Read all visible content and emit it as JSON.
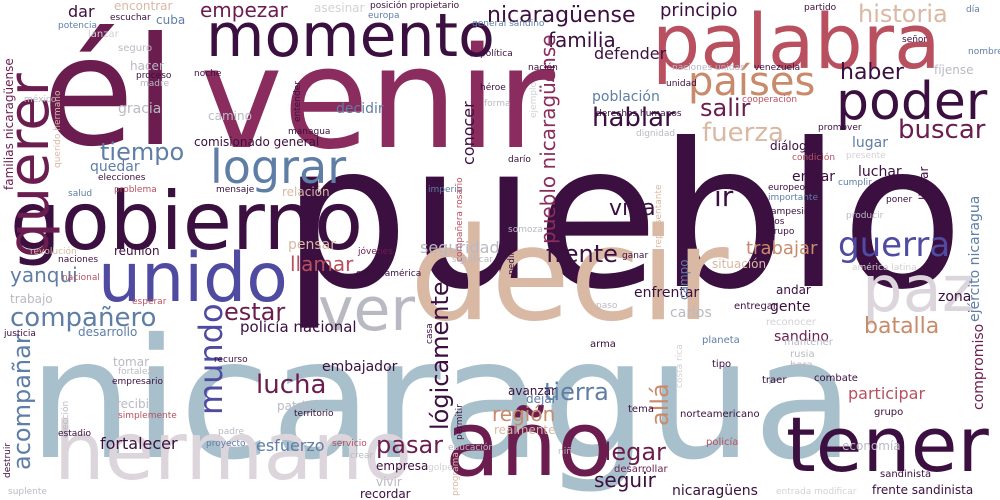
{
  "palette": {
    "dark_purple": "#3b0f3f",
    "wine": "#6b1d4f",
    "plum": "#8a2d5e",
    "rose": "#b8505f",
    "peach": "#c88a6a",
    "sand": "#d9b8a4",
    "mist": "#dcd6dc",
    "pale": "#b9b9c3",
    "steel": "#a7c0cb",
    "slate": "#5f7ea6",
    "indigo": "#4e4ba0",
    "faint": "#d5d0d6"
  },
  "words": [
    {
      "text": "pueblo",
      "color": "dark_purple",
      "vertical": false
    },
    {
      "text": "nicaragua",
      "color": "steel",
      "vertical": false
    },
    {
      "text": "decir",
      "color": "sand",
      "vertical": false
    },
    {
      "text": "él",
      "color": "wine",
      "vertical": false
    },
    {
      "text": "venir",
      "color": "plum",
      "vertical": false
    },
    {
      "text": "palabra",
      "color": "rose",
      "vertical": false
    },
    {
      "text": "hermano",
      "color": "mist",
      "vertical": false
    },
    {
      "text": "año",
      "color": "wine",
      "vertical": false
    },
    {
      "text": "tener",
      "color": "dark_purple",
      "vertical": false
    },
    {
      "text": "gobierno",
      "color": "dark_purple",
      "vertical": false
    },
    {
      "text": "momento",
      "color": "dark_purple",
      "vertical": false
    },
    {
      "text": "unido",
      "color": "indigo",
      "vertical": false
    },
    {
      "text": "querer",
      "color": "wine",
      "vertical": true
    },
    {
      "text": "ver",
      "color": "pale",
      "vertical": false
    },
    {
      "text": "paz",
      "color": "mist",
      "vertical": false
    },
    {
      "text": "poder",
      "color": "dark_purple",
      "vertical": false
    },
    {
      "text": "lograr",
      "color": "slate",
      "vertical": false
    },
    {
      "text": "países",
      "color": "peach",
      "vertical": false
    },
    {
      "text": "guerra",
      "color": "indigo",
      "vertical": false
    },
    {
      "text": "compañero",
      "color": "slate",
      "vertical": false
    },
    {
      "text": "mundo",
      "color": "indigo",
      "vertical": true
    },
    {
      "text": "hablar",
      "color": "dark_purple",
      "vertical": false
    },
    {
      "text": "fuerza",
      "color": "sand",
      "vertical": false
    },
    {
      "text": "buscar",
      "color": "wine",
      "vertical": false
    },
    {
      "text": "tiempo",
      "color": "slate",
      "vertical": false
    },
    {
      "text": "salir",
      "color": "wine",
      "vertical": false
    },
    {
      "text": "haber",
      "color": "dark_purple",
      "vertical": false
    },
    {
      "text": "historia",
      "color": "sand",
      "vertical": false
    },
    {
      "text": "empezar",
      "color": "wine",
      "vertical": false
    },
    {
      "text": "familia",
      "color": "dark_purple",
      "vertical": false
    },
    {
      "text": "nicaragüense",
      "color": "dark_purple",
      "vertical": false
    },
    {
      "text": "principio",
      "color": "dark_purple",
      "vertical": false
    },
    {
      "text": "defender",
      "color": "dark_purple",
      "vertical": false
    },
    {
      "text": "frente",
      "color": "dark_purple",
      "vertical": false
    },
    {
      "text": "vida",
      "color": "dark_purple",
      "vertical": false
    },
    {
      "text": "ir",
      "color": "dark_purple",
      "vertical": false
    },
    {
      "text": "estar",
      "color": "wine",
      "vertical": false
    },
    {
      "text": "lucha",
      "color": "wine",
      "vertical": false
    },
    {
      "text": "llamar",
      "color": "rose",
      "vertical": false
    },
    {
      "text": "yanqui",
      "color": "slate",
      "vertical": false
    },
    {
      "text": "pasar",
      "color": "wine",
      "vertical": false
    },
    {
      "text": "llegar",
      "color": "wine",
      "vertical": false
    },
    {
      "text": "seguir",
      "color": "dark_purple",
      "vertical": false
    },
    {
      "text": "tierra",
      "color": "slate",
      "vertical": false
    },
    {
      "text": "región",
      "color": "peach",
      "vertical": false
    },
    {
      "text": "batalla",
      "color": "peach",
      "vertical": false
    },
    {
      "text": "trabajar",
      "color": "peach",
      "vertical": false
    },
    {
      "text": "lógicamente",
      "color": "dark_purple",
      "vertical": true
    },
    {
      "text": "pueblo nicaragüense",
      "color": "plum",
      "vertical": true
    },
    {
      "text": "acompañar",
      "color": "slate",
      "vertical": true
    },
    {
      "text": "allá",
      "color": "peach",
      "vertical": true
    },
    {
      "text": "policía nacional",
      "color": "dark_purple",
      "vertical": false
    },
    {
      "text": "seguridad",
      "color": "pale",
      "vertical": false
    },
    {
      "text": "fortalecer",
      "color": "dark_purple",
      "vertical": false
    },
    {
      "text": "esfuerzo",
      "color": "slate",
      "vertical": false
    },
    {
      "text": "embajador",
      "color": "dark_purple",
      "vertical": false
    },
    {
      "text": "participar",
      "color": "rose",
      "vertical": false
    },
    {
      "text": "compromiso",
      "color": "wine",
      "vertical": true
    },
    {
      "text": "ejército nicaragua",
      "color": "slate",
      "vertical": true
    },
    {
      "text": "sandino",
      "color": "wine",
      "vertical": false
    },
    {
      "text": "conocer",
      "color": "dark_purple",
      "vertical": true
    },
    {
      "text": "población",
      "color": "slate",
      "vertical": false
    },
    {
      "text": "zona",
      "color": "dark_purple",
      "vertical": false
    },
    {
      "text": "carlos",
      "color": "pale",
      "vertical": false
    },
    {
      "text": "gente",
      "color": "dark_purple",
      "vertical": false
    },
    {
      "text": "nicaragüens",
      "color": "dark_purple",
      "vertical": false
    },
    {
      "text": "comisionado general",
      "color": "dark_purple",
      "vertical": false
    },
    {
      "text": "diálogo",
      "color": "dark_purple",
      "vertical": false
    },
    {
      "text": "lugar",
      "color": "slate",
      "vertical": false
    },
    {
      "text": "entrar",
      "color": "dark_purple",
      "vertical": false
    },
    {
      "text": "luchar",
      "color": "dark_purple",
      "vertical": false
    },
    {
      "text": "llevar",
      "color": "dark_purple",
      "vertical": true
    },
    {
      "text": "enfrentar",
      "color": "dark_purple",
      "vertical": false
    },
    {
      "text": "avanzar",
      "color": "dark_purple",
      "vertical": false
    },
    {
      "text": "dejar",
      "color": "slate",
      "vertical": false
    },
    {
      "text": "realmente",
      "color": "sand",
      "vertical": false
    },
    {
      "text": "empresa",
      "color": "dark_purple",
      "vertical": false
    },
    {
      "text": "vivir",
      "color": "pale",
      "vertical": false
    },
    {
      "text": "recordar",
      "color": "dark_purple",
      "vertical": false
    },
    {
      "text": "patria",
      "color": "pale",
      "vertical": false
    },
    {
      "text": "pensar",
      "color": "sand",
      "vertical": false
    },
    {
      "text": "decidir",
      "color": "slate",
      "vertical": false
    },
    {
      "text": "camino",
      "color": "pale",
      "vertical": false
    },
    {
      "text": "gracia",
      "color": "pale",
      "vertical": false
    },
    {
      "text": "quedar",
      "color": "slate",
      "vertical": false
    },
    {
      "text": "reunión",
      "color": "dark_purple",
      "vertical": false
    },
    {
      "text": "cuba",
      "color": "slate",
      "vertical": false
    },
    {
      "text": "dar",
      "color": "dark_purple",
      "vertical": false
    },
    {
      "text": "encontrar",
      "color": "sand",
      "vertical": false
    },
    {
      "text": "asesinar",
      "color": "faint",
      "vertical": false
    },
    {
      "text": "hacer",
      "color": "pale",
      "vertical": false
    },
    {
      "text": "seguro",
      "color": "pale",
      "vertical": false
    },
    {
      "text": "relación",
      "color": "sand",
      "vertical": false
    },
    {
      "text": "situación",
      "color": "sand",
      "vertical": false
    },
    {
      "text": "campo",
      "color": "slate",
      "vertical": true
    },
    {
      "text": "andar",
      "color": "dark_purple",
      "vertical": false
    },
    {
      "text": "trabajo",
      "color": "pale",
      "vertical": false
    },
    {
      "text": "desarrollo",
      "color": "slate",
      "vertical": false
    },
    {
      "text": "tomar",
      "color": "pale",
      "vertical": false
    },
    {
      "text": "recibir",
      "color": "pale",
      "vertical": false
    },
    {
      "text": "lanzar",
      "color": "faint",
      "vertical": false
    },
    {
      "text": "economía",
      "color": "pale",
      "vertical": false
    },
    {
      "text": "sandinista",
      "color": "dark_purple",
      "vertical": false
    },
    {
      "text": "fíjense",
      "color": "pale",
      "vertical": false
    },
    {
      "text": "frente sandinista",
      "color": "dark_purple",
      "vertical": false
    },
    {
      "text": "familias nicaragüense",
      "color": "wine",
      "vertical": true
    },
    {
      "text": "policía",
      "color": "rose",
      "vertical": false
    },
    {
      "text": "desarrollar",
      "color": "wine",
      "vertical": false
    },
    {
      "text": "norteamericano",
      "color": "dark_purple",
      "vertical": false
    },
    {
      "text": "tema",
      "color": "dark_purple",
      "vertical": false
    },
    {
      "text": "traer",
      "color": "dark_purple",
      "vertical": false
    },
    {
      "text": "combate",
      "color": "dark_purple",
      "vertical": false
    },
    {
      "text": "tipo",
      "color": "dark_purple",
      "vertical": false
    },
    {
      "text": "mantener",
      "color": "pale",
      "vertical": false
    },
    {
      "text": "rusia",
      "color": "pale",
      "vertical": false
    },
    {
      "text": "hora",
      "color": "pale",
      "vertical": false
    },
    {
      "text": "grupo",
      "color": "dark_purple",
      "vertical": false
    },
    {
      "text": "reconocer",
      "color": "faint",
      "vertical": false
    },
    {
      "text": "planeta",
      "color": "slate",
      "vertical": false
    },
    {
      "text": "entregar",
      "color": "dark_purple",
      "vertical": false
    },
    {
      "text": "arma",
      "color": "dark_purple",
      "vertical": false
    },
    {
      "text": "ganar",
      "color": "dark_purple",
      "vertical": false
    },
    {
      "text": "pedir",
      "color": "dark_purple",
      "vertical": true
    },
    {
      "text": "significar",
      "color": "pale",
      "vertical": false
    },
    {
      "text": "jóvenes",
      "color": "wine",
      "vertical": false
    },
    {
      "text": "centroamérica",
      "color": "dark_purple",
      "vertical": false
    },
    {
      "text": "grupo",
      "color": "dark_purple",
      "vertical": false
    },
    {
      "text": "dios",
      "color": "dark_purple",
      "vertical": false
    },
    {
      "text": "campesino",
      "color": "dark_purple",
      "vertical": false
    },
    {
      "text": "europeo",
      "color": "dark_purple",
      "vertical": false
    },
    {
      "text": "importante",
      "color": "slate",
      "vertical": false
    },
    {
      "text": "cumplir",
      "color": "slate",
      "vertical": false
    },
    {
      "text": "producir",
      "color": "pale",
      "vertical": false
    },
    {
      "text": "poner",
      "color": "dark_purple",
      "vertical": false
    },
    {
      "text": "condición",
      "color": "rose",
      "vertical": false
    },
    {
      "text": "presente",
      "color": "faint",
      "vertical": false
    },
    {
      "text": "promover",
      "color": "dark_purple",
      "vertical": false
    },
    {
      "text": "darío",
      "color": "dark_purple",
      "vertical": false
    },
    {
      "text": "somoza",
      "color": "pale",
      "vertical": false
    },
    {
      "text": "imperio",
      "color": "slate",
      "vertical": false
    },
    {
      "text": "representante",
      "color": "sand",
      "vertical": true
    },
    {
      "text": "compañera rosario",
      "color": "rose",
      "vertical": true
    },
    {
      "text": "mensaje",
      "color": "dark_purple",
      "vertical": false
    },
    {
      "text": "problema",
      "color": "rose",
      "vertical": false
    },
    {
      "text": "elecciones",
      "color": "dark_purple",
      "vertical": false
    },
    {
      "text": "salud",
      "color": "slate",
      "vertical": false
    },
    {
      "text": "managua",
      "color": "dark_purple",
      "vertical": false
    },
    {
      "text": "entender",
      "color": "dark_purple",
      "vertical": true
    },
    {
      "text": "dignidad",
      "color": "pale",
      "vertical": false
    },
    {
      "text": "derechos humanos",
      "color": "dark_purple",
      "vertical": false
    },
    {
      "text": "cooperación",
      "color": "rose",
      "vertical": false
    },
    {
      "text": "unidad",
      "color": "dark_purple",
      "vertical": false
    },
    {
      "text": "venezuela",
      "color": "dark_purple",
      "vertical": false
    },
    {
      "text": "naciones unidas",
      "color": "pale",
      "vertical": false
    },
    {
      "text": "noche",
      "color": "dark_purple",
      "vertical": false
    },
    {
      "text": "madre",
      "color": "pale",
      "vertical": false
    },
    {
      "text": "proceso",
      "color": "dark_purple",
      "vertical": false
    },
    {
      "text": "méxico",
      "color": "pale",
      "vertical": false
    },
    {
      "text": "querido hermano",
      "color": "sand",
      "vertical": true
    },
    {
      "text": "nación",
      "color": "dark_purple",
      "vertical": false
    },
    {
      "text": "héroe",
      "color": "dark_purple",
      "vertical": false
    },
    {
      "text": "forma",
      "color": "pale",
      "vertical": false
    },
    {
      "text": "ejemplo",
      "color": "faint",
      "vertical": true
    },
    {
      "text": "política",
      "color": "dark_purple",
      "vertical": false
    },
    {
      "text": "posición propietario",
      "color": "dark_purple",
      "vertical": false
    },
    {
      "text": "europa",
      "color": "slate",
      "vertical": false
    },
    {
      "text": "general sandino",
      "color": "slate",
      "vertical": false
    },
    {
      "text": "escuchar",
      "color": "dark_purple",
      "vertical": false
    },
    {
      "text": "potencia",
      "color": "slate",
      "vertical": false
    },
    {
      "text": "partido",
      "color": "dark_purple",
      "vertical": false
    },
    {
      "text": "señor",
      "color": "dark_purple",
      "vertical": false
    },
    {
      "text": "nombre",
      "color": "slate",
      "vertical": false
    },
    {
      "text": "día",
      "color": "slate",
      "vertical": false
    },
    {
      "text": "revolución",
      "color": "sand",
      "vertical": false
    },
    {
      "text": "naciones",
      "color": "dark_purple",
      "vertical": false
    },
    {
      "text": "nacional",
      "color": "rose",
      "vertical": false
    },
    {
      "text": "justicia",
      "color": "dark_purple",
      "vertical": false
    },
    {
      "text": "elección",
      "color": "pale",
      "vertical": true
    },
    {
      "text": "fortaleza",
      "color": "pale",
      "vertical": false
    },
    {
      "text": "recurso",
      "color": "dark_purple",
      "vertical": false
    },
    {
      "text": "empresario",
      "color": "dark_purple",
      "vertical": false
    },
    {
      "text": "esperar",
      "color": "rose",
      "vertical": false
    },
    {
      "text": "simplemente",
      "color": "rose",
      "vertical": false
    },
    {
      "text": "estadio",
      "color": "dark_purple",
      "vertical": false
    },
    {
      "text": "destruir",
      "color": "dark_purple",
      "vertical": true
    },
    {
      "text": "suplente",
      "color": "pale",
      "vertical": false
    },
    {
      "text": "territorio",
      "color": "dark_purple",
      "vertical": false
    },
    {
      "text": "padre",
      "color": "pale",
      "vertical": false
    },
    {
      "text": "proyecto",
      "color": "slate",
      "vertical": false
    },
    {
      "text": "servicio",
      "color": "rose",
      "vertical": false
    },
    {
      "text": "crear",
      "color": "pale",
      "vertical": false
    },
    {
      "text": "golpe",
      "color": "faint",
      "vertical": false
    },
    {
      "text": "educación",
      "color": "pale",
      "vertical": false
    },
    {
      "text": "niño",
      "color": "pale",
      "vertical": false
    },
    {
      "text": "programa",
      "color": "sand",
      "vertical": true
    },
    {
      "text": "permitir",
      "color": "dark_purple",
      "vertical": true
    },
    {
      "text": "casa",
      "color": "dark_purple",
      "vertical": true
    },
    {
      "text": "paso",
      "color": "pale",
      "vertical": false
    },
    {
      "text": "costa rica",
      "color": "faint",
      "vertical": true
    },
    {
      "text": "américa latina",
      "color": "faint",
      "vertical": false
    },
    {
      "text": "entrada modificar",
      "color": "faint",
      "vertical": false
    }
  ]
}
